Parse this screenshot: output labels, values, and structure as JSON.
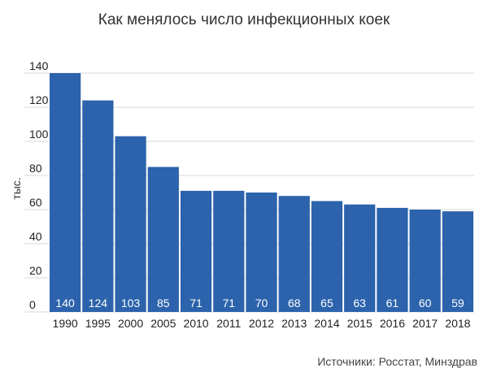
{
  "chart_data": {
    "type": "bar",
    "title": "Как менялось число инфекционных коек",
    "ylabel": "тыс.",
    "xlabel": "",
    "categories": [
      "1990",
      "1995",
      "2000",
      "2005",
      "2010",
      "2011",
      "2012",
      "2013",
      "2014",
      "2015",
      "2016",
      "2017",
      "2018"
    ],
    "values": [
      140,
      124,
      103,
      85,
      71,
      71,
      70,
      68,
      65,
      63,
      61,
      60,
      59
    ],
    "data_labels": [
      "140",
      "124",
      "103",
      "85",
      "71",
      "71",
      "70",
      "68",
      "65",
      "63",
      "61",
      "60",
      "59"
    ],
    "ylim": [
      0,
      140
    ],
    "yticks": [
      0,
      20,
      40,
      60,
      80,
      100,
      120,
      140
    ],
    "ytick_labels": [
      "0",
      "20",
      "40",
      "60",
      "80",
      "100",
      "120",
      "140"
    ],
    "grid": true,
    "legend": false,
    "bar_color": "#2c63ac",
    "source": "Источники: Росстат, Минздрав"
  }
}
